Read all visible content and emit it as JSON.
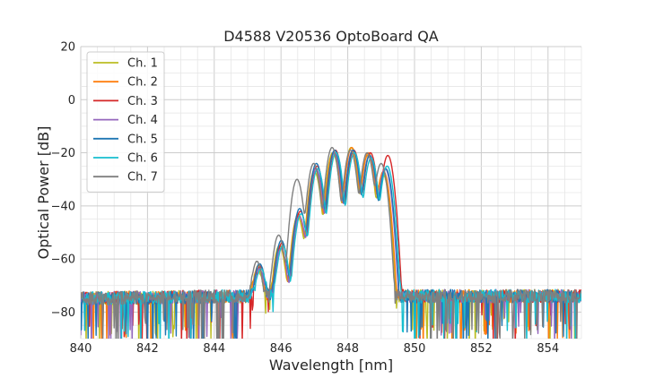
{
  "chart_data": {
    "type": "line",
    "title": "D4588 V20536 OptoBoard QA",
    "xlabel": "Wavelength [nm]",
    "ylabel": "Optical Power [dB]",
    "xlim": [
      840,
      855
    ],
    "ylim": [
      -90,
      20
    ],
    "xticks": [
      840,
      842,
      844,
      846,
      848,
      850,
      852,
      854
    ],
    "yticks": [
      -80,
      -60,
      -40,
      -20,
      0,
      20
    ],
    "xtick_labels": [
      "840",
      "842",
      "844",
      "846",
      "848",
      "850",
      "852",
      "854"
    ],
    "ytick_labels": [
      "−80",
      "−60",
      "−40",
      "−20",
      "0",
      "20"
    ],
    "grid": true,
    "legend_position": "top-left",
    "noise_floor_db": -74,
    "series": [
      {
        "name": "Ch. 1",
        "color": "#bcbd22",
        "peaks_nm": [
          845.3,
          845.95,
          846.5,
          847.0,
          847.55,
          848.1,
          848.6,
          849.05
        ],
        "peaks_db": [
          -64,
          -55,
          -44,
          -27,
          -20,
          -18,
          -21,
          -28
        ]
      },
      {
        "name": "Ch. 2",
        "color": "#ff7f0e",
        "peaks_nm": [
          845.32,
          845.97,
          846.52,
          847.02,
          847.57,
          848.12,
          848.62,
          849.07
        ],
        "peaks_db": [
          -63,
          -55,
          -43,
          -26,
          -20,
          -18,
          -20,
          -27
        ]
      },
      {
        "name": "Ch. 3",
        "color": "#d62728",
        "peaks_nm": [
          845.38,
          846.03,
          846.58,
          847.08,
          847.63,
          848.18,
          848.68,
          849.2
        ],
        "peaks_db": [
          -63,
          -54,
          -42,
          -25,
          -19,
          -19,
          -20,
          -21
        ]
      },
      {
        "name": "Ch. 4",
        "color": "#9467bd",
        "peaks_nm": [
          845.35,
          846.0,
          846.55,
          847.05,
          847.6,
          848.15,
          848.65,
          849.12
        ],
        "peaks_db": [
          -64,
          -56,
          -44,
          -26,
          -20,
          -19,
          -21,
          -26
        ]
      },
      {
        "name": "Ch. 5",
        "color": "#1f77b4",
        "peaks_nm": [
          845.36,
          846.01,
          846.56,
          847.06,
          847.61,
          848.16,
          848.66,
          849.14
        ],
        "peaks_db": [
          -62,
          -53,
          -41,
          -24,
          -19,
          -19,
          -21,
          -26
        ]
      },
      {
        "name": "Ch. 6",
        "color": "#17becf",
        "peaks_nm": [
          845.4,
          846.05,
          846.6,
          847.1,
          847.65,
          848.2,
          848.7,
          849.18
        ],
        "peaks_db": [
          -64,
          -55,
          -43,
          -26,
          -20,
          -20,
          -22,
          -25
        ]
      },
      {
        "name": "Ch. 7",
        "color": "#7f7f7f",
        "peaks_nm": [
          845.28,
          845.93,
          846.48,
          846.98,
          847.53,
          848.08,
          848.58,
          849.0
        ],
        "peaks_db": [
          -61,
          -51,
          -30,
          -24,
          -18,
          -19,
          -20,
          -24
        ]
      }
    ]
  }
}
